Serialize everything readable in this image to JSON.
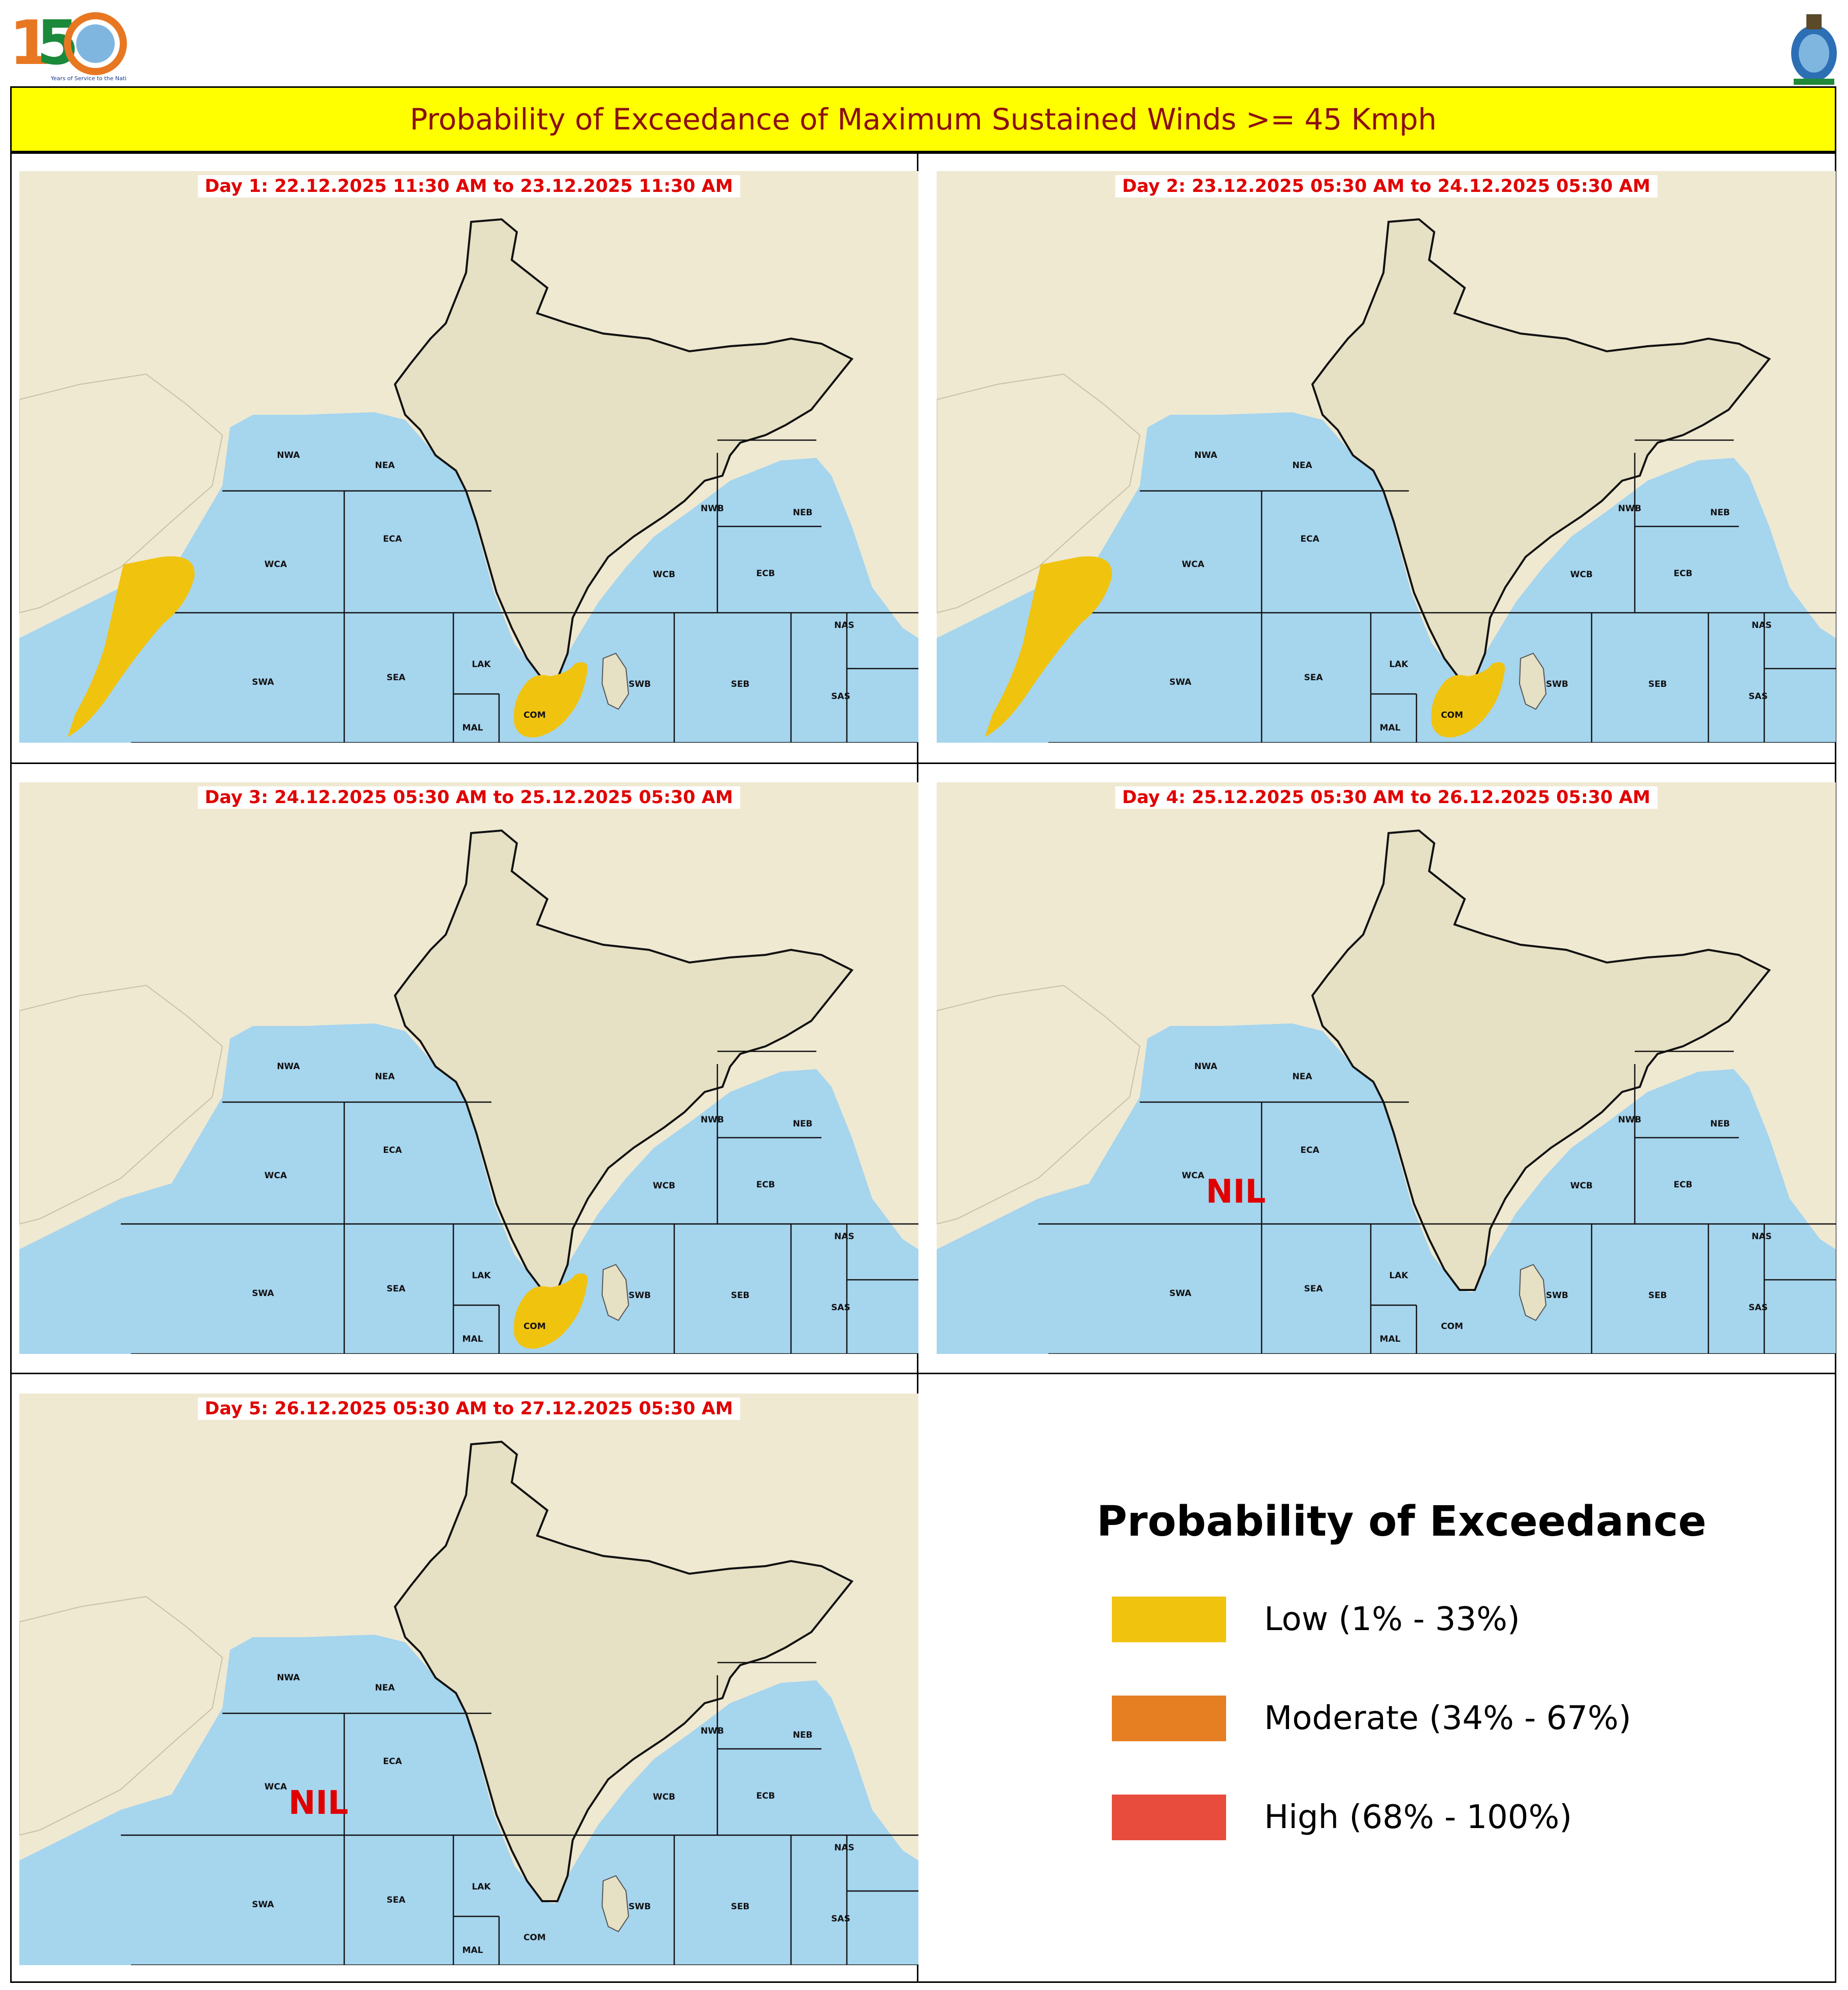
{
  "header": {
    "left_logo_text": "150",
    "left_logo_tagline": "Years of Service to the Nation",
    "right_logo_icon": "emblem-icon"
  },
  "title": "Probability of Exceedance of Maximum Sustained Winds >= 45 Kmph",
  "zones": [
    "NWA",
    "NEA",
    "WCA",
    "ECA",
    "WCB",
    "NWB",
    "NEB",
    "ECB",
    "NAS",
    "SWA",
    "SEA",
    "LAK",
    "MAL",
    "COM",
    "SWB",
    "SEB",
    "SAS"
  ],
  "panels": [
    {
      "label": "Day 1: 22.12.2025 11:30 AM to 23.12.2025 11:30 AM",
      "nil": "",
      "areas": [
        "low-west",
        "low-com"
      ]
    },
    {
      "label": "Day 2: 23.12.2025 05:30 AM to 24.12.2025 05:30 AM",
      "nil": "",
      "areas": [
        "low-west",
        "low-com"
      ]
    },
    {
      "label": "Day 3: 24.12.2025 05:30 AM to 25.12.2025 05:30 AM",
      "nil": "",
      "areas": [
        "low-com"
      ]
    },
    {
      "label": "Day 4: 25.12.2025 05:30 AM to 26.12.2025 05:30 AM",
      "nil": "NIL",
      "areas": []
    },
    {
      "label": "Day 5: 26.12.2025 05:30 AM to 27.12.2025 05:30 AM",
      "nil": "NIL",
      "areas": []
    }
  ],
  "legend": {
    "title": "Probability of Exceedance",
    "items": [
      {
        "label": "Low (1% - 33%)",
        "color": "#f0c30f"
      },
      {
        "label": "Moderate (34% - 67%)",
        "color": "#e67e22"
      },
      {
        "label": "High (68% - 100%)",
        "color": "#e74c3c"
      }
    ]
  },
  "colors": {
    "sea": "#a6d5ee",
    "land": "#efe9d2",
    "title_bg": "#ffff00",
    "title_text": "#8b1010",
    "label_text": "#e00000"
  }
}
